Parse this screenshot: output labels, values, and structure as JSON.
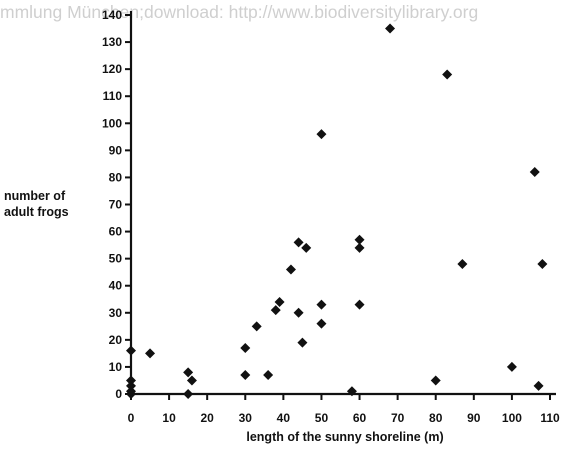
{
  "watermark": "mmlung München;download: http://www.biodiversitylibrary.org",
  "chart_data": {
    "type": "scatter",
    "xlabel": "length of the sunny shoreline (m)",
    "ylabel_lines": [
      "number of",
      "adult frogs"
    ],
    "xlim": [
      0,
      110
    ],
    "ylim": [
      0,
      140
    ],
    "x_ticks": [
      0,
      10,
      20,
      30,
      40,
      50,
      60,
      70,
      80,
      90,
      100,
      110
    ],
    "y_ticks": [
      0,
      10,
      20,
      30,
      40,
      50,
      60,
      70,
      80,
      90,
      100,
      110,
      120,
      130,
      140
    ],
    "grid": false,
    "marker": "diamond",
    "color": "#111111",
    "points": [
      {
        "x": 0,
        "y": 0
      },
      {
        "x": 0,
        "y": 1
      },
      {
        "x": 0,
        "y": 3
      },
      {
        "x": 0,
        "y": 5
      },
      {
        "x": 0,
        "y": 16
      },
      {
        "x": 5,
        "y": 15
      },
      {
        "x": 15,
        "y": 0
      },
      {
        "x": 15,
        "y": 8
      },
      {
        "x": 16,
        "y": 5
      },
      {
        "x": 30,
        "y": 7
      },
      {
        "x": 30,
        "y": 17
      },
      {
        "x": 33,
        "y": 25
      },
      {
        "x": 36,
        "y": 7
      },
      {
        "x": 38,
        "y": 31
      },
      {
        "x": 39,
        "y": 34
      },
      {
        "x": 42,
        "y": 46
      },
      {
        "x": 44,
        "y": 56
      },
      {
        "x": 44,
        "y": 30
      },
      {
        "x": 45,
        "y": 19
      },
      {
        "x": 46,
        "y": 54
      },
      {
        "x": 50,
        "y": 96
      },
      {
        "x": 50,
        "y": 33
      },
      {
        "x": 50,
        "y": 26
      },
      {
        "x": 58,
        "y": 1
      },
      {
        "x": 60,
        "y": 57
      },
      {
        "x": 60,
        "y": 54
      },
      {
        "x": 60,
        "y": 33
      },
      {
        "x": 68,
        "y": 135
      },
      {
        "x": 80,
        "y": 5
      },
      {
        "x": 83,
        "y": 118
      },
      {
        "x": 87,
        "y": 48
      },
      {
        "x": 100,
        "y": 10
      },
      {
        "x": 106,
        "y": 82
      },
      {
        "x": 107,
        "y": 3
      },
      {
        "x": 108,
        "y": 48
      }
    ]
  }
}
